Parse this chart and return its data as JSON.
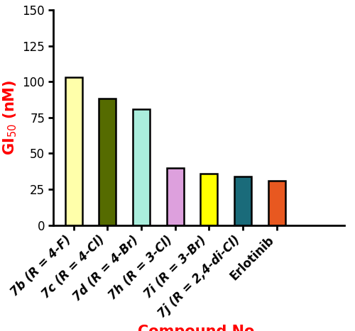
{
  "categories": [
    "7b (R = 4-F)",
    "7c (R = 4-Cl)",
    "7d (R = 4-Br)",
    "7h (R = 3-Cl)",
    "7i (R = 3-Br)",
    "7j (R = 2,4-di-Cl)",
    "Erlotinib"
  ],
  "values": [
    103,
    88,
    81,
    40,
    36,
    34,
    31
  ],
  "bar_colors": [
    "#FFFFAA",
    "#556B00",
    "#AAEEDD",
    "#DDA0DD",
    "#FFFF00",
    "#1A6B7A",
    "#E85820"
  ],
  "bar_edgecolor": "#000000",
  "bar_linewidth": 1.8,
  "ylabel": "GI$_{50}$ (nM)",
  "xlabel": "Compound No.",
  "ylabel_color": "#FF0000",
  "xlabel_color": "#FF0000",
  "ylim": [
    0,
    150
  ],
  "yticks": [
    0,
    25,
    50,
    75,
    100,
    125,
    150
  ],
  "ylabel_fontsize": 15,
  "xlabel_fontsize": 15,
  "tick_label_fontsize": 12,
  "xlabel_fontweight": "bold",
  "ylabel_fontweight": "bold",
  "bar_width": 0.5,
  "xlim_left": -0.6,
  "xlim_right": 8.0
}
